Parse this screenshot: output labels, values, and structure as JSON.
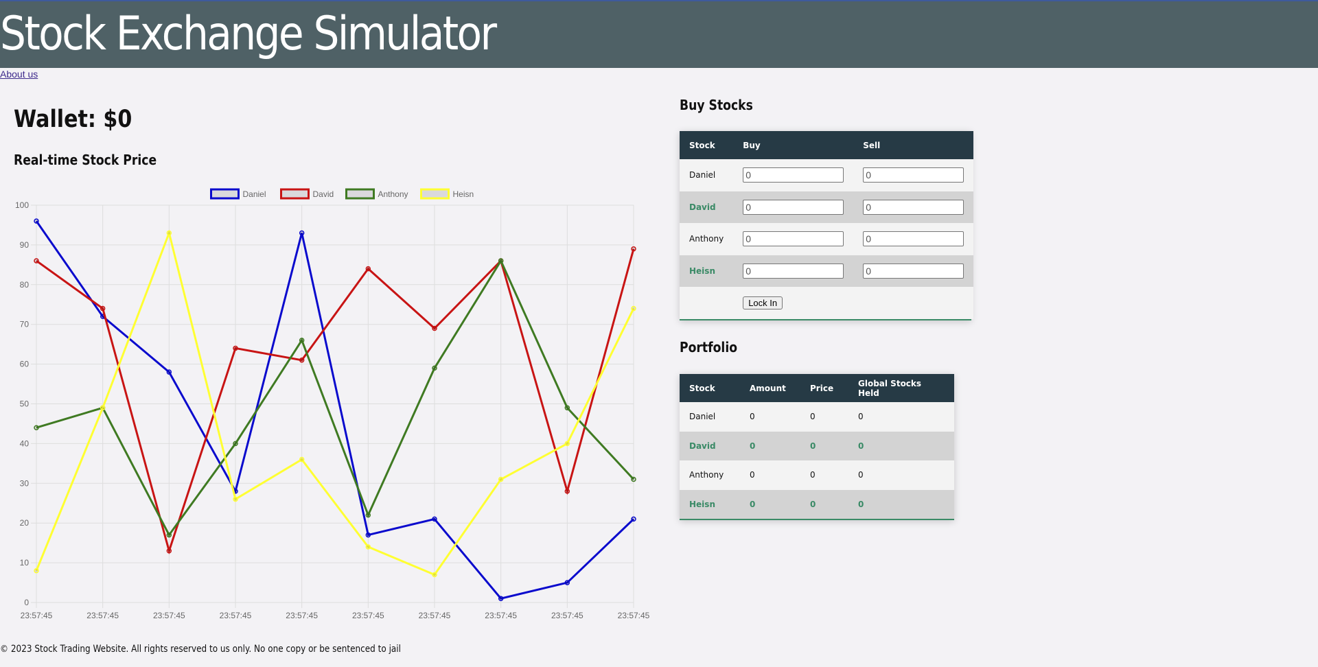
{
  "header": {
    "title": "Stock Exchange Simulator"
  },
  "nav": {
    "about_label": "About us"
  },
  "wallet": {
    "label": "Wallet: $0"
  },
  "chart": {
    "title": "Real-time Stock Price"
  },
  "chart_data": {
    "type": "line",
    "x": [
      "23:57:45",
      "23:57:45",
      "23:57:45",
      "23:57:45",
      "23:57:45",
      "23:57:45",
      "23:57:45",
      "23:57:45",
      "23:57:45",
      "23:57:45"
    ],
    "series": [
      {
        "name": "Daniel",
        "color": "#0a0acd",
        "values": [
          96,
          72,
          58,
          28,
          93,
          17,
          21,
          1,
          5,
          21
        ]
      },
      {
        "name": "David",
        "color": "#c81414",
        "values": [
          86,
          74,
          13,
          64,
          61,
          84,
          69,
          86,
          28,
          89
        ]
      },
      {
        "name": "Anthony",
        "color": "#3f7a22",
        "values": [
          44,
          49,
          17,
          40,
          66,
          22,
          59,
          86,
          49,
          31
        ]
      },
      {
        "name": "Heisn",
        "color": "#ffff32",
        "values": [
          8,
          49,
          93,
          26,
          36,
          14,
          7,
          31,
          40,
          74
        ]
      }
    ],
    "ylim": [
      0,
      100
    ],
    "yticks": [
      "0",
      "10",
      "20",
      "30",
      "40",
      "50",
      "60",
      "70",
      "80",
      "90",
      "100"
    ],
    "grid": true,
    "legend": "top"
  },
  "buy": {
    "title": "Buy Stocks",
    "headers": {
      "stock": "Stock",
      "buy": "Buy",
      "sell": "Sell"
    },
    "rows": [
      {
        "stock": "Daniel",
        "buy": "0",
        "sell": "0"
      },
      {
        "stock": "David",
        "buy": "0",
        "sell": "0"
      },
      {
        "stock": "Anthony",
        "buy": "0",
        "sell": "0"
      },
      {
        "stock": "Heisn",
        "buy": "0",
        "sell": "0"
      }
    ],
    "lock_label": "Lock In"
  },
  "portfolio": {
    "title": "Portfolio",
    "headers": {
      "stock": "Stock",
      "amount": "Amount",
      "price": "Price",
      "global": "Global Stocks Held"
    },
    "rows": [
      {
        "stock": "Daniel",
        "amount": "0",
        "price": "0",
        "global": "0"
      },
      {
        "stock": "David",
        "amount": "0",
        "price": "0",
        "global": "0"
      },
      {
        "stock": "Anthony",
        "amount": "0",
        "price": "0",
        "global": "0"
      },
      {
        "stock": "Heisn",
        "amount": "0",
        "price": "0",
        "global": "0"
      }
    ]
  },
  "footer": {
    "text": "© 2023 Stock Trading Website. All rights reserved to us only. No one copy or be sentenced to jail"
  }
}
